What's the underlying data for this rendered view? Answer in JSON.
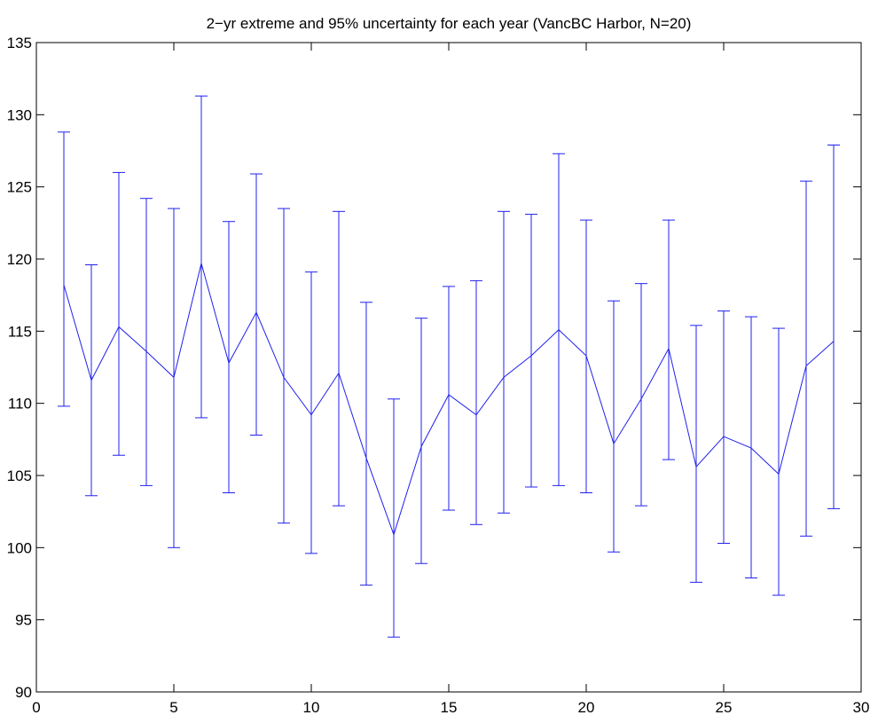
{
  "chart_data": {
    "type": "line",
    "title": "2−yr extreme and 95% uncertainty for each year (VancBC Harbor, N=20)",
    "xlabel": "",
    "ylabel": "",
    "xlim": [
      0,
      30
    ],
    "ylim": [
      90,
      135
    ],
    "xticks": [
      0,
      5,
      10,
      15,
      20,
      25,
      30
    ],
    "yticks": [
      90,
      95,
      100,
      105,
      110,
      115,
      120,
      125,
      130,
      135
    ],
    "grid": false,
    "legend": "none",
    "series": [
      {
        "color": "#2020ee",
        "error_bars": true,
        "x": [
          1,
          2,
          3,
          4,
          5,
          6,
          7,
          8,
          9,
          10,
          11,
          12,
          13,
          14,
          15,
          16,
          17,
          18,
          19,
          20,
          21,
          22,
          23,
          24,
          25,
          26,
          27,
          28,
          29
        ],
        "y": [
          118.2,
          111.6,
          115.3,
          113.6,
          111.8,
          119.7,
          112.8,
          116.3,
          111.8,
          109.2,
          112.1,
          106.2,
          100.9,
          107.0,
          110.6,
          109.2,
          111.8,
          113.3,
          115.1,
          113.3,
          107.2,
          110.3,
          113.8,
          105.6,
          107.7,
          106.9,
          105.1,
          112.6,
          114.3
        ],
        "lower": [
          109.8,
          103.6,
          106.4,
          104.3,
          100.0,
          109.0,
          103.8,
          107.8,
          101.7,
          99.6,
          102.9,
          97.4,
          93.8,
          98.9,
          102.6,
          101.6,
          102.4,
          104.2,
          104.3,
          103.8,
          99.7,
          102.9,
          106.1,
          97.6,
          100.3,
          97.9,
          96.7,
          100.8,
          102.7
        ],
        "upper": [
          128.8,
          119.6,
          126.0,
          124.2,
          123.5,
          131.3,
          122.6,
          125.9,
          123.5,
          119.1,
          123.3,
          117.0,
          110.3,
          115.9,
          118.1,
          118.5,
          123.3,
          123.1,
          127.3,
          122.7,
          117.1,
          118.3,
          122.7,
          115.4,
          116.4,
          116.0,
          115.2,
          125.4,
          127.9
        ]
      }
    ]
  }
}
